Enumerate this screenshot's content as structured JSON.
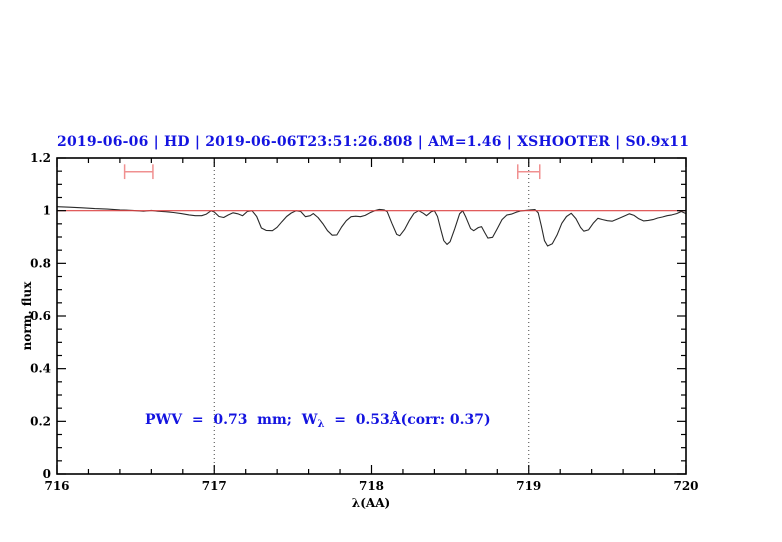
{
  "title": "2019-06-06 | HD | 2019-06-06T23:51:26.808 | AM=1.46 | XSHOOTER | S0.9x11",
  "annotation": {
    "pre": "PWV  =  0.73  mm;  W",
    "sub": "λ",
    "post": "  =  0.53Å(corr: 0.37)"
  },
  "colors": {
    "text_accent": "#1414e0",
    "frame": "#000000",
    "spectrum": "#2a2a2a",
    "reference_line": "#dd4444",
    "marker": "#f09090",
    "grid_line": "#444444"
  },
  "chart_data": {
    "type": "line",
    "title": "2019-06-06 | HD | 2019-06-06T23:51:26.808 | AM=1.46 | XSHOOTER | S0.9x11",
    "xlabel": "λ(AA)",
    "ylabel": "norm. flux",
    "xlim": [
      716,
      720
    ],
    "ylim": [
      0,
      1.2
    ],
    "grid": false,
    "legend": "none",
    "xticks": [
      {
        "v": 716,
        "label": "716"
      },
      {
        "v": 717,
        "label": "717"
      },
      {
        "v": 718,
        "label": "718"
      },
      {
        "v": 719,
        "label": "719"
      },
      {
        "v": 720,
        "label": "720"
      }
    ],
    "yticks": [
      {
        "v": 0,
        "label": "0"
      },
      {
        "v": 0.2,
        "label": "0.2"
      },
      {
        "v": 0.4,
        "label": "0.4"
      },
      {
        "v": 0.6,
        "label": "0.6"
      },
      {
        "v": 0.8,
        "label": "0.8"
      },
      {
        "v": 1,
        "label": "1"
      },
      {
        "v": 1.2,
        "label": "1.2"
      }
    ],
    "x_minor_step": 0.2,
    "y_minor_step": 0.05,
    "grid_vlines": [
      717,
      719
    ],
    "reference_line": {
      "y": 1.0
    },
    "markers": [
      {
        "x1": 716.43,
        "x2": 716.61,
        "y": 1.148,
        "cap": 0.028
      },
      {
        "x1": 718.93,
        "x2": 719.07,
        "y": 1.148,
        "cap": 0.028
      }
    ],
    "series": [
      {
        "name": "telluric-corrected spectrum",
        "points": [
          [
            716.0,
            1.015
          ],
          [
            716.08,
            1.013
          ],
          [
            716.16,
            1.011
          ],
          [
            716.24,
            1.008
          ],
          [
            716.32,
            1.006
          ],
          [
            716.4,
            1.003
          ],
          [
            716.48,
            1.001
          ],
          [
            716.55,
            0.998
          ],
          [
            716.6,
            1.001
          ],
          [
            716.64,
            0.998
          ],
          [
            716.69,
            0.996
          ],
          [
            716.74,
            0.993
          ],
          [
            716.79,
            0.989
          ],
          [
            716.84,
            0.984
          ],
          [
            716.88,
            0.981
          ],
          [
            716.92,
            0.981
          ],
          [
            716.95,
            0.987
          ],
          [
            716.98,
            1.0
          ],
          [
            717.0,
            0.995
          ],
          [
            717.03,
            0.978
          ],
          [
            717.06,
            0.974
          ],
          [
            717.09,
            0.984
          ],
          [
            717.12,
            0.992
          ],
          [
            717.15,
            0.988
          ],
          [
            717.18,
            0.981
          ],
          [
            717.21,
            0.997
          ],
          [
            717.24,
            1.0
          ],
          [
            717.27,
            0.978
          ],
          [
            717.3,
            0.934
          ],
          [
            717.33,
            0.925
          ],
          [
            717.37,
            0.924
          ],
          [
            717.4,
            0.937
          ],
          [
            717.43,
            0.958
          ],
          [
            717.46,
            0.978
          ],
          [
            717.49,
            0.991
          ],
          [
            717.52,
            1.0
          ],
          [
            717.55,
            0.997
          ],
          [
            717.58,
            0.977
          ],
          [
            717.61,
            0.981
          ],
          [
            717.63,
            0.989
          ],
          [
            717.66,
            0.974
          ],
          [
            717.69,
            0.951
          ],
          [
            717.72,
            0.924
          ],
          [
            717.75,
            0.907
          ],
          [
            717.78,
            0.908
          ],
          [
            717.81,
            0.938
          ],
          [
            717.84,
            0.962
          ],
          [
            717.87,
            0.977
          ],
          [
            717.9,
            0.979
          ],
          [
            717.93,
            0.977
          ],
          [
            717.96,
            0.982
          ],
          [
            717.99,
            0.992
          ],
          [
            718.02,
            1.0
          ],
          [
            718.05,
            1.005
          ],
          [
            718.08,
            1.003
          ],
          [
            718.1,
            0.996
          ],
          [
            718.13,
            0.952
          ],
          [
            718.16,
            0.91
          ],
          [
            718.18,
            0.905
          ],
          [
            718.21,
            0.928
          ],
          [
            718.24,
            0.962
          ],
          [
            718.27,
            0.99
          ],
          [
            718.3,
            1.0
          ],
          [
            718.33,
            0.99
          ],
          [
            718.35,
            0.981
          ],
          [
            718.38,
            0.996
          ],
          [
            718.4,
            1.0
          ],
          [
            718.42,
            0.978
          ],
          [
            718.44,
            0.93
          ],
          [
            718.46,
            0.886
          ],
          [
            718.48,
            0.872
          ],
          [
            718.5,
            0.882
          ],
          [
            718.53,
            0.932
          ],
          [
            718.56,
            0.988
          ],
          [
            718.58,
            1.0
          ],
          [
            718.6,
            0.975
          ],
          [
            718.63,
            0.932
          ],
          [
            718.65,
            0.924
          ],
          [
            718.68,
            0.936
          ],
          [
            718.7,
            0.939
          ],
          [
            718.72,
            0.917
          ],
          [
            718.74,
            0.896
          ],
          [
            718.77,
            0.899
          ],
          [
            718.8,
            0.932
          ],
          [
            718.83,
            0.966
          ],
          [
            718.86,
            0.983
          ],
          [
            718.89,
            0.987
          ],
          [
            718.92,
            0.994
          ],
          [
            718.95,
            0.999
          ],
          [
            718.98,
            1.001
          ],
          [
            719.01,
            1.003
          ],
          [
            719.04,
            1.004
          ],
          [
            719.06,
            0.992
          ],
          [
            719.08,
            0.943
          ],
          [
            719.1,
            0.886
          ],
          [
            719.12,
            0.866
          ],
          [
            719.15,
            0.874
          ],
          [
            719.18,
            0.908
          ],
          [
            719.21,
            0.952
          ],
          [
            719.24,
            0.978
          ],
          [
            719.27,
            0.99
          ],
          [
            719.3,
            0.97
          ],
          [
            719.33,
            0.936
          ],
          [
            719.35,
            0.922
          ],
          [
            719.38,
            0.927
          ],
          [
            719.41,
            0.952
          ],
          [
            719.44,
            0.971
          ],
          [
            719.47,
            0.966
          ],
          [
            719.5,
            0.962
          ],
          [
            719.53,
            0.96
          ],
          [
            719.57,
            0.97
          ],
          [
            719.61,
            0.98
          ],
          [
            719.64,
            0.988
          ],
          [
            719.67,
            0.982
          ],
          [
            719.7,
            0.969
          ],
          [
            719.73,
            0.961
          ],
          [
            719.76,
            0.963
          ],
          [
            719.79,
            0.966
          ],
          [
            719.82,
            0.972
          ],
          [
            719.85,
            0.976
          ],
          [
            719.88,
            0.981
          ],
          [
            719.91,
            0.984
          ],
          [
            719.94,
            0.989
          ],
          [
            719.97,
            0.997
          ],
          [
            720.0,
            0.989
          ]
        ]
      }
    ]
  }
}
